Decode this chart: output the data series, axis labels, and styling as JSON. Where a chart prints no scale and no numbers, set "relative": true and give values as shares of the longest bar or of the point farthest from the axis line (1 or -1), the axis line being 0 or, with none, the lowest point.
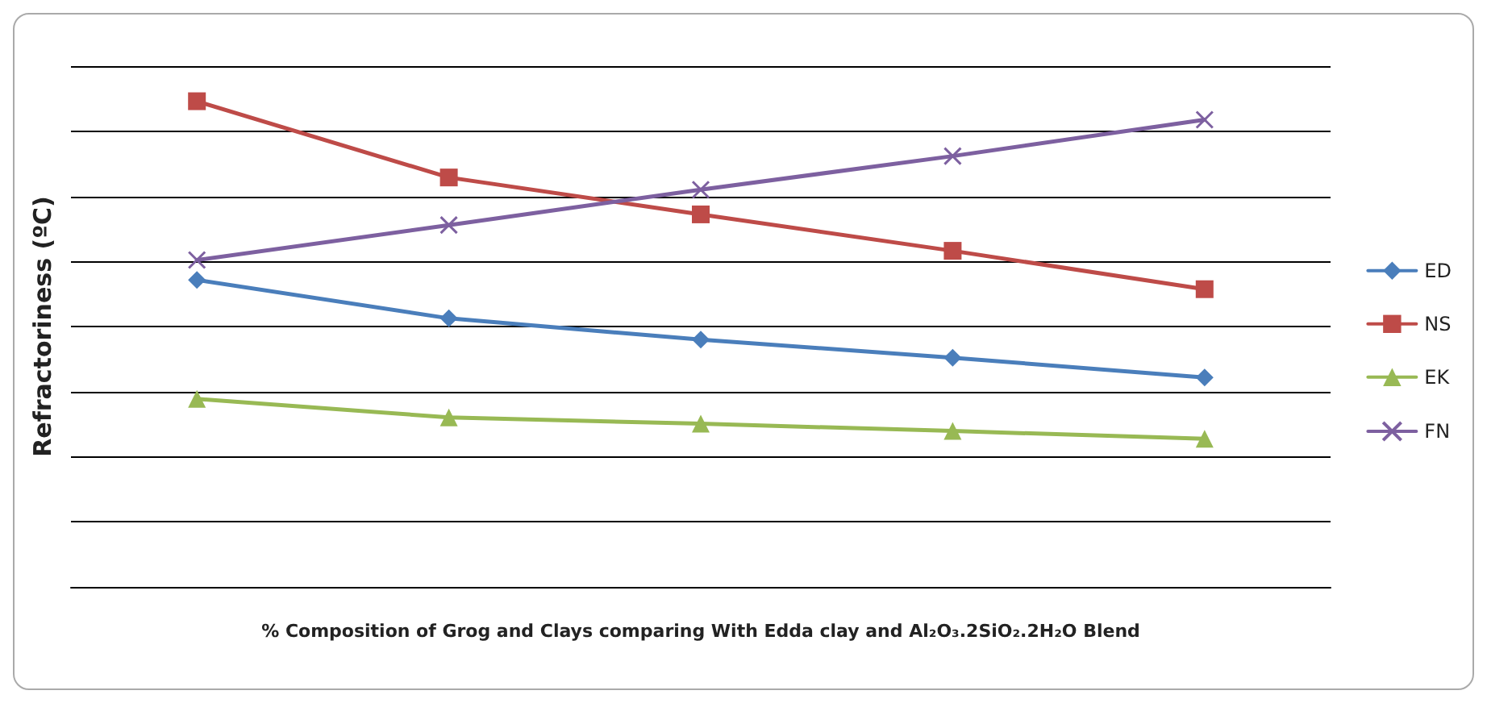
{
  "chart_data": {
    "type": "line",
    "relative": true,
    "xlabel": "% Composition of Grog and Clays comparing With Edda clay and Al₂O₃.2SiO₂.2H₂O Blend",
    "ylabel": "Refractoriness (ºC)",
    "categories": [
      null,
      null,
      null,
      null,
      null
    ],
    "grid": "y",
    "legend": "right",
    "line_style": "solid",
    "series": [
      {
        "name": "ED",
        "color": "#4a7ebb",
        "marker": "diamond",
        "values": [
          0.632,
          0.553,
          0.509,
          0.472,
          0.431
        ]
      },
      {
        "name": "NS",
        "color": "#be4b48",
        "marker": "square",
        "values": [
          1.0,
          0.843,
          0.767,
          0.692,
          0.613
        ]
      },
      {
        "name": "EK",
        "color": "#98b954",
        "marker": "triangle",
        "values": [
          0.387,
          0.349,
          0.336,
          0.321,
          0.305
        ]
      },
      {
        "name": "FN",
        "color": "#7d60a0",
        "marker": "cross",
        "values": [
          0.673,
          0.745,
          0.818,
          0.887,
          0.962
        ]
      }
    ]
  }
}
